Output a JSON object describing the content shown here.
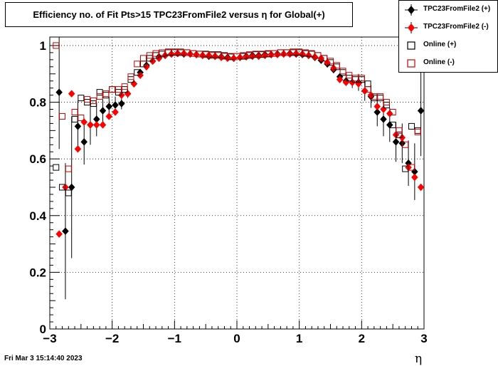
{
  "chart_data": {
    "type": "scatter",
    "title": "Efficiency no. of Fit Pts>15 TPC23FromFile2 versus η for Global(+)",
    "xlabel": "η",
    "ylabel": "",
    "xlim": [
      -3,
      3
    ],
    "ylim": [
      0,
      1.03
    ],
    "xticks": [
      -3,
      -2,
      -1,
      0,
      1,
      2,
      3
    ],
    "xtick_labels": [
      "−3",
      "−2",
      "−1",
      "0",
      "1",
      "2",
      "3"
    ],
    "yticks": [
      0,
      0.2,
      0.4,
      0.6,
      0.8,
      1
    ],
    "ytick_labels": [
      "0",
      "0.2",
      "0.4",
      "0.6",
      "0.8",
      "1"
    ],
    "grid": true,
    "legend_position": "top-right",
    "series": [
      {
        "name": "TPC23FromFile2 (+)",
        "color": "#000000",
        "marker": "filled-diamond",
        "x": [
          -2.85,
          -2.75,
          -2.65,
          -2.55,
          -2.45,
          -2.35,
          -2.25,
          -2.15,
          -2.05,
          -1.95,
          -1.85,
          -1.75,
          -1.65,
          -1.55,
          -1.45,
          -1.35,
          -1.25,
          -1.15,
          -1.05,
          -0.95,
          -0.85,
          -0.75,
          -0.65,
          -0.55,
          -0.45,
          -0.35,
          -0.25,
          -0.15,
          -0.05,
          0.05,
          0.15,
          0.25,
          0.35,
          0.45,
          0.55,
          0.65,
          0.75,
          0.85,
          0.95,
          1.05,
          1.15,
          1.25,
          1.35,
          1.45,
          1.55,
          1.65,
          1.75,
          1.85,
          1.95,
          2.05,
          2.15,
          2.25,
          2.35,
          2.45,
          2.55,
          2.65,
          2.75,
          2.85,
          2.95
        ],
        "y": [
          0.835,
          0.345,
          0.5,
          0.715,
          0.66,
          0.72,
          0.74,
          0.77,
          0.785,
          0.79,
          0.795,
          0.83,
          0.865,
          0.905,
          0.93,
          0.945,
          0.96,
          0.965,
          0.97,
          0.972,
          0.97,
          0.97,
          0.968,
          0.965,
          0.962,
          0.962,
          0.96,
          0.958,
          0.955,
          0.958,
          0.962,
          0.965,
          0.965,
          0.968,
          0.968,
          0.97,
          0.97,
          0.972,
          0.97,
          0.968,
          0.965,
          0.958,
          0.948,
          0.935,
          0.915,
          0.89,
          0.875,
          0.87,
          0.87,
          0.84,
          0.82,
          0.765,
          0.74,
          0.72,
          0.66,
          0.655,
          0.585,
          0.555,
          0.77
        ],
        "err": [
          0.2,
          0.24,
          0.25,
          0.09,
          0.08,
          0.07,
          0.06,
          0.04,
          0.035,
          0.03,
          0.02,
          0.015,
          0.012,
          0.01,
          0.008,
          0.007,
          0.006,
          0.005,
          0.005,
          0.005,
          0.005,
          0.005,
          0.005,
          0.005,
          0.005,
          0.005,
          0.005,
          0.005,
          0.005,
          0.005,
          0.005,
          0.005,
          0.005,
          0.005,
          0.005,
          0.005,
          0.005,
          0.005,
          0.005,
          0.005,
          0.005,
          0.006,
          0.007,
          0.008,
          0.01,
          0.012,
          0.015,
          0.02,
          0.03,
          0.035,
          0.04,
          0.05,
          0.06,
          0.06,
          0.07,
          0.07,
          0.08,
          0.1,
          0.16
        ]
      },
      {
        "name": "TPC23FromFile2 (-)",
        "color": "#ff0000",
        "marker": "filled-diamond",
        "x": [
          -2.85,
          -2.75,
          -2.65,
          -2.55,
          -2.45,
          -2.35,
          -2.25,
          -2.15,
          -2.05,
          -1.95,
          -1.85,
          -1.75,
          -1.65,
          -1.55,
          -1.45,
          -1.35,
          -1.25,
          -1.15,
          -1.05,
          -0.95,
          -0.85,
          -0.75,
          -0.65,
          -0.55,
          -0.45,
          -0.35,
          -0.25,
          -0.15,
          -0.05,
          0.05,
          0.15,
          0.25,
          0.35,
          0.45,
          0.55,
          0.65,
          0.75,
          0.85,
          0.95,
          1.05,
          1.15,
          1.25,
          1.35,
          1.45,
          1.55,
          1.65,
          1.75,
          1.85,
          1.95,
          2.05,
          2.15,
          2.25,
          2.35,
          2.45,
          2.55,
          2.65,
          2.75,
          2.85,
          2.95
        ],
        "y": [
          0.335,
          0.5,
          0.83,
          0.635,
          0.73,
          0.72,
          0.72,
          0.72,
          0.75,
          0.765,
          0.825,
          0.83,
          0.865,
          0.895,
          0.925,
          0.945,
          0.955,
          0.965,
          0.97,
          0.972,
          0.972,
          0.97,
          0.968,
          0.965,
          0.965,
          0.962,
          0.958,
          0.955,
          0.955,
          0.958,
          0.96,
          0.962,
          0.962,
          0.965,
          0.968,
          0.968,
          0.97,
          0.97,
          0.972,
          0.97,
          0.965,
          0.96,
          0.955,
          0.94,
          0.92,
          0.88,
          0.87,
          0.87,
          0.865,
          0.84,
          0.825,
          0.785,
          0.775,
          0.76,
          0.685,
          0.675,
          0.57,
          0.535,
          0.5
        ]
      },
      {
        "name": "Online (+)",
        "color": "#000000",
        "marker": "open-square",
        "x": [
          -2.9,
          -2.8,
          -2.7,
          -2.6,
          -2.5,
          -2.4,
          -2.3,
          -2.2,
          -2.1,
          -2.0,
          -1.9,
          -1.8,
          -1.7,
          -1.6,
          -1.5,
          -1.4,
          -1.3,
          -1.2,
          -1.1,
          -1.0,
          -0.9,
          -0.8,
          -0.7,
          -0.6,
          -0.5,
          -0.4,
          -0.3,
          -0.2,
          -0.1,
          0.0,
          0.1,
          0.2,
          0.3,
          0.4,
          0.5,
          0.6,
          0.7,
          0.8,
          0.9,
          1.0,
          1.1,
          1.2,
          1.3,
          1.4,
          1.5,
          1.6,
          1.7,
          1.8,
          1.9,
          2.0,
          2.1,
          2.2,
          2.3,
          2.4,
          2.5,
          2.6,
          2.7,
          2.8,
          2.9
        ],
        "y": [
          0.57,
          0.5,
          0.48,
          0.74,
          0.815,
          0.8,
          0.795,
          0.835,
          0.825,
          0.845,
          0.835,
          0.845,
          0.88,
          0.905,
          0.935,
          0.955,
          0.965,
          0.97,
          0.975,
          0.975,
          0.975,
          0.975,
          0.972,
          0.97,
          0.97,
          0.968,
          0.968,
          0.965,
          0.96,
          0.962,
          0.962,
          0.965,
          0.968,
          0.968,
          0.97,
          0.972,
          0.975,
          0.975,
          0.975,
          0.975,
          0.972,
          0.97,
          0.965,
          0.955,
          0.94,
          0.925,
          0.905,
          0.885,
          0.88,
          0.88,
          0.865,
          0.815,
          0.815,
          0.79,
          0.72,
          0.685,
          0.565,
          0.715,
          0.7
        ]
      },
      {
        "name": "Online (-)",
        "color": "#cc0000",
        "marker": "open-square",
        "x": [
          -2.9,
          -2.8,
          -2.7,
          -2.6,
          -2.5,
          -2.4,
          -2.3,
          -2.2,
          -2.1,
          -2.0,
          -1.9,
          -1.8,
          -1.7,
          -1.6,
          -1.5,
          -1.4,
          -1.3,
          -1.2,
          -1.1,
          -1.0,
          -0.9,
          -0.8,
          -0.7,
          -0.6,
          -0.5,
          -0.4,
          -0.3,
          -0.2,
          -0.1,
          0.0,
          0.1,
          0.2,
          0.3,
          0.4,
          0.5,
          0.6,
          0.7,
          0.8,
          0.9,
          1.0,
          1.1,
          1.2,
          1.3,
          1.4,
          1.5,
          1.6,
          1.7,
          1.8,
          1.9,
          2.0,
          2.1,
          2.2,
          2.3,
          2.4,
          2.5,
          2.6,
          2.7,
          2.8,
          2.9
        ],
        "y": [
          1.0,
          0.75,
          0.565,
          0.765,
          0.745,
          0.81,
          0.805,
          0.82,
          0.83,
          0.845,
          0.845,
          0.855,
          0.89,
          0.935,
          0.955,
          0.965,
          0.972,
          0.975,
          0.978,
          0.978,
          0.978,
          0.975,
          0.972,
          0.97,
          0.968,
          0.965,
          0.965,
          0.962,
          0.962,
          0.962,
          0.965,
          0.968,
          0.97,
          0.97,
          0.972,
          0.972,
          0.975,
          0.975,
          0.978,
          0.978,
          0.975,
          0.972,
          0.965,
          0.955,
          0.945,
          0.93,
          0.91,
          0.895,
          0.885,
          0.885,
          0.845,
          0.82,
          0.82,
          0.8,
          0.765,
          0.7,
          0.65,
          0.57,
          0.695
        ]
      }
    ]
  },
  "legend": {
    "entries": [
      {
        "label": "TPC23FromFile2 (+)"
      },
      {
        "label": "TPC23FromFile2 (-)"
      },
      {
        "label": "Online (+)"
      },
      {
        "label": "Online (-)"
      }
    ]
  },
  "footer": {
    "date": "Fri Mar  3 15:14:40 2023"
  }
}
